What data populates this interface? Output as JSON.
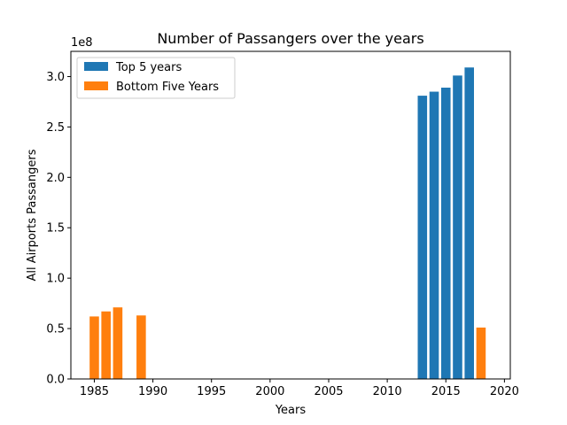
{
  "chart_data": {
    "type": "bar",
    "title": "Number of Passangers over the years",
    "xlabel": "Years",
    "ylabel": "All Airports Passangers",
    "y_offset_label": "1e8",
    "xlim": [
      1983,
      2020.5
    ],
    "ylim": [
      0,
      3.25
    ],
    "x_ticks": [
      1985,
      1990,
      1995,
      2000,
      2005,
      2010,
      2015,
      2020
    ],
    "y_ticks": [
      0.0,
      0.5,
      1.0,
      1.5,
      2.0,
      2.5,
      3.0
    ],
    "y_tick_labels": [
      "0.0",
      "0.5",
      "1.0",
      "1.5",
      "2.0",
      "2.5",
      "3.0"
    ],
    "legend_position": "upper-left",
    "grid": false,
    "series": [
      {
        "name": "Top 5 years",
        "color": "#1f77b4",
        "x": [
          2013,
          2014,
          2015,
          2016,
          2017
        ],
        "values": [
          2.81,
          2.85,
          2.89,
          3.01,
          3.09
        ]
      },
      {
        "name": "Bottom Five Years",
        "color": "#ff7f0e",
        "x": [
          1985,
          1986,
          1987,
          1989,
          2018
        ],
        "values": [
          0.62,
          0.67,
          0.71,
          0.63,
          0.51
        ]
      }
    ]
  }
}
